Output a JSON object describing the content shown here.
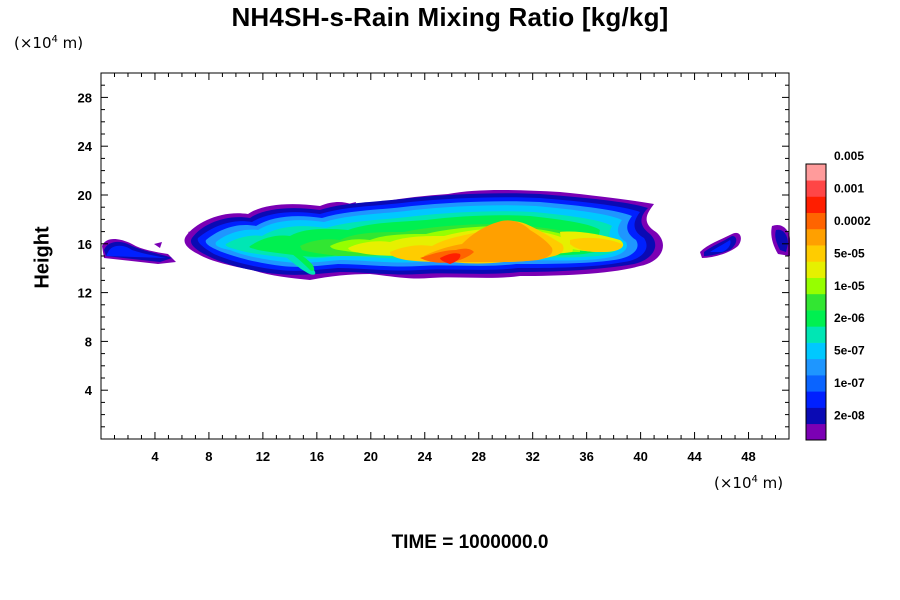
{
  "chart_data": {
    "type": "heatmap",
    "title": "NH4SH-s-Rain Mixing Ratio [kg/kg]",
    "ylabel": "Height",
    "x_unit": {
      "prefix": "(×10",
      "exp": "4",
      "suffix": " m)"
    },
    "y_unit": {
      "prefix": "(×10",
      "exp": "4",
      "suffix": " m)"
    },
    "xlim": [
      0,
      51
    ],
    "ylim": [
      0,
      30
    ],
    "x_ticks": [
      4,
      8,
      12,
      16,
      20,
      24,
      28,
      32,
      36,
      40,
      44,
      48
    ],
    "y_ticks": [
      4,
      8,
      12,
      16,
      20,
      24,
      28
    ],
    "colorbar": {
      "colors": [
        "#7b00b4",
        "#0a0ab4",
        "#0020ff",
        "#0a64ff",
        "#1e96ff",
        "#00c8ff",
        "#00e6b4",
        "#00f050",
        "#32e632",
        "#96ff00",
        "#e6f000",
        "#ffcc00",
        "#ffa000",
        "#ff6400",
        "#ff1e00",
        "#ff4646",
        "#ff9b9b"
      ],
      "labels": [
        "2e-08",
        "1e-07",
        "5e-07",
        "2e-06",
        "1e-05",
        "5e-05",
        "0.0002",
        "0.001",
        "0.005"
      ]
    },
    "footer": "TIME = 1000000.0"
  }
}
